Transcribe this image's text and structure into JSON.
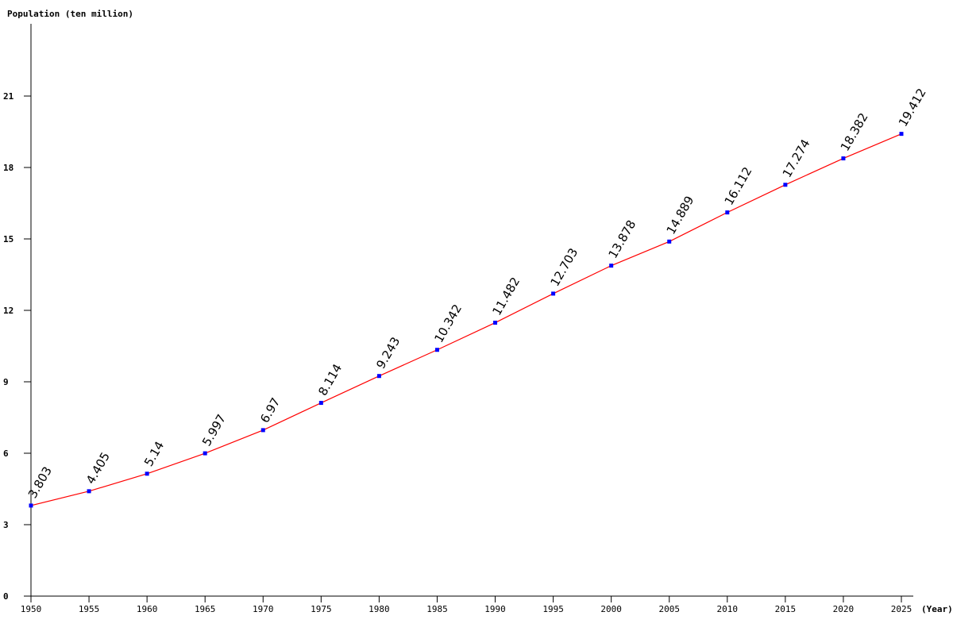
{
  "chart_data": {
    "type": "line",
    "title": "",
    "ylabel": "Population (ten million)",
    "xlabel": "(Year)",
    "x": [
      1950,
      1955,
      1960,
      1965,
      1970,
      1975,
      1980,
      1985,
      1990,
      1995,
      2000,
      2005,
      2010,
      2015,
      2020,
      2025
    ],
    "values": [
      3.803,
      4.405,
      5.14,
      5.997,
      6.97,
      8.114,
      9.243,
      10.342,
      11.482,
      12.703,
      13.878,
      14.889,
      16.112,
      17.274,
      18.382,
      19.412
    ],
    "data_labels": [
      "3.803",
      "4.405",
      "5.14",
      "5.997",
      "6.97",
      "8.114",
      "9.243",
      "10.342",
      "11.482",
      "12.703",
      "13.878",
      "14.889",
      "16.112",
      "17.274",
      "18.382",
      "19.412"
    ],
    "ylim": [
      0,
      24
    ],
    "yticks": [
      0,
      3,
      6,
      9,
      12,
      15,
      18,
      21
    ],
    "xlim": [
      1950,
      2025
    ],
    "grid": false,
    "line_color": "#ff0000",
    "marker_color": "#0000ff"
  }
}
